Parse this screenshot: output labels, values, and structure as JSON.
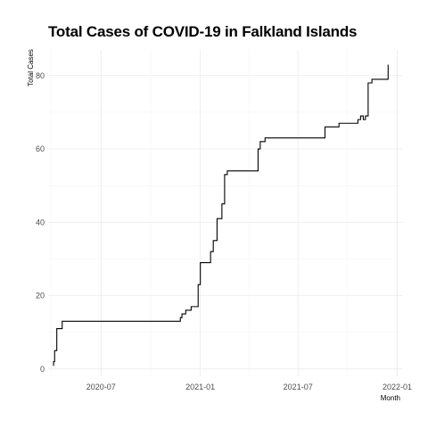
{
  "chart_data": {
    "type": "line",
    "title": "Total Cases of COVID-19 in Falkland Islands",
    "xlabel": "Month",
    "ylabel": "Total Cases",
    "x_ticks": [
      "2020-07",
      "2021-01",
      "2021-07",
      "2022-01"
    ],
    "y_ticks": [
      0,
      20,
      40,
      60,
      80
    ],
    "xlim": [
      "2020-03-25",
      "2022-01-10"
    ],
    "ylim": [
      -2,
      87
    ],
    "grid": true,
    "legend": "none",
    "line_color": "#000000",
    "series": [
      {
        "x": [
          "2020-04-03",
          "2020-04-04",
          "2020-04-06",
          "2020-04-10",
          "2020-04-15",
          "2020-04-20",
          "2020-11-25",
          "2020-11-28",
          "2020-12-05",
          "2020-12-15",
          "2020-12-28",
          "2021-01-01",
          "2021-01-20",
          "2021-01-25",
          "2021-02-01",
          "2021-02-10",
          "2021-02-15",
          "2021-02-20",
          "2021-04-18",
          "2021-04-22",
          "2021-05-01",
          "2021-08-20",
          "2021-09-15",
          "2021-10-20",
          "2021-10-25",
          "2021-10-30",
          "2021-11-03",
          "2021-11-08",
          "2021-11-15",
          "2021-11-20",
          "2021-12-15"
        ],
        "y": [
          1,
          2,
          5,
          11,
          11,
          13,
          14,
          15,
          16,
          17,
          23,
          29,
          32,
          35,
          41,
          45,
          53,
          54,
          60,
          62,
          63,
          66,
          67,
          68,
          69,
          68,
          69,
          78,
          79,
          79,
          83
        ]
      }
    ]
  }
}
